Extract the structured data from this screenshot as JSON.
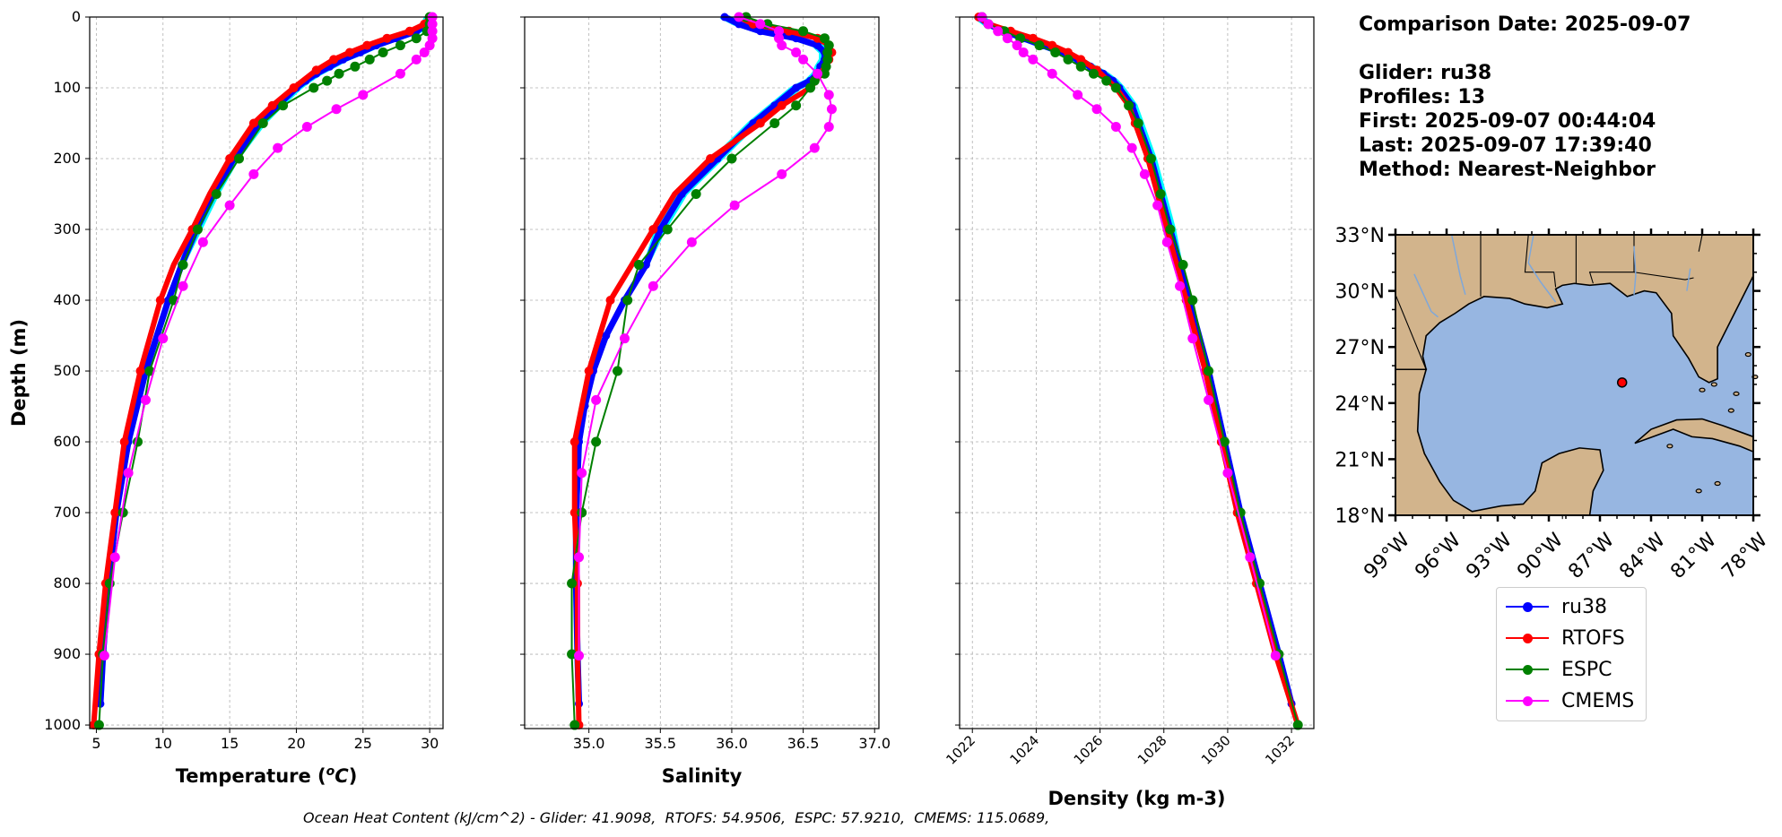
{
  "info": {
    "comparison_date": "Comparison Date: 2025-09-07",
    "glider": "Glider: ru38",
    "profiles": "Profiles: 13",
    "first": "First: 2025-09-07 00:44:04",
    "last": "Last: 2025-09-07 17:39:40",
    "method": "Method: Nearest-Neighbor"
  },
  "footer": "Ocean Heat Content (kJ/cm^2) - Glider: 41.9098,  RTOFS: 54.9506,  ESPC: 57.9210,  CMEMS: 115.0689,",
  "colors": {
    "glider": "#0000ff",
    "glider_raw": "#00ffff",
    "rtofs": "#ff0000",
    "espc": "#008000",
    "cmems": "#ff00ff",
    "land": "#d2b48c",
    "ocean": "#97b6e1"
  },
  "legend": [
    {
      "label": "ru38",
      "color": "#0000ff"
    },
    {
      "label": "RTOFS",
      "color": "#ff0000"
    },
    {
      "label": "ESPC",
      "color": "#008000"
    },
    {
      "label": "CMEMS",
      "color": "#ff00ff"
    }
  ],
  "chart_data": [
    {
      "type": "line",
      "xlabel": "Temperature (°C)",
      "ylabel": "Depth (m)",
      "xlim": [
        4.5,
        31
      ],
      "ylim": [
        1005,
        0
      ],
      "xticks": [
        5,
        10,
        15,
        20,
        25,
        30
      ],
      "yticks": [
        0,
        100,
        200,
        300,
        400,
        500,
        600,
        700,
        800,
        900,
        1000
      ],
      "grid": true,
      "series": [
        {
          "name": "ru38",
          "depth": [
            0,
            10,
            20,
            30,
            40,
            50,
            60,
            70,
            80,
            90,
            100,
            125,
            150,
            200,
            250,
            300,
            350,
            400,
            500,
            600,
            700,
            800,
            900,
            970
          ],
          "values": [
            30.0,
            29.8,
            29.0,
            27.5,
            26.0,
            24.8,
            23.5,
            22.5,
            21.5,
            20.7,
            20.0,
            18.6,
            17.3,
            15.3,
            13.8,
            12.5,
            11.4,
            10.4,
            8.7,
            7.4,
            6.5,
            5.9,
            5.5,
            5.3
          ]
        },
        {
          "name": "RTOFS",
          "depth": [
            0,
            10,
            20,
            30,
            40,
            50,
            60,
            75,
            100,
            125,
            150,
            200,
            250,
            300,
            350,
            400,
            500,
            600,
            700,
            800,
            900,
            1000
          ],
          "values": [
            30.0,
            29.6,
            28.5,
            26.8,
            25.3,
            24.0,
            22.8,
            21.5,
            19.8,
            18.2,
            16.8,
            15.0,
            13.5,
            12.2,
            10.8,
            9.8,
            8.3,
            7.1,
            6.4,
            5.7,
            5.2,
            4.8
          ]
        },
        {
          "name": "ESPC",
          "depth": [
            0,
            10,
            20,
            30,
            40,
            50,
            60,
            70,
            80,
            90,
            100,
            125,
            150,
            200,
            250,
            300,
            350,
            400,
            500,
            600,
            700,
            800,
            900,
            1000
          ],
          "values": [
            30.0,
            30.0,
            29.8,
            29.0,
            27.8,
            26.5,
            25.5,
            24.4,
            23.2,
            22.3,
            21.3,
            19.0,
            17.5,
            15.7,
            14.0,
            12.6,
            11.5,
            10.8,
            9.0,
            8.1,
            7.0,
            6.0,
            5.5,
            5.2
          ]
        },
        {
          "name": "CMEMS",
          "depth": [
            0,
            10,
            20,
            30,
            40,
            50,
            60,
            80,
            110,
            130,
            155,
            185,
            222,
            266,
            318,
            380,
            454,
            541,
            644,
            763,
            902
          ],
          "values": [
            30.2,
            30.2,
            30.2,
            30.2,
            30.0,
            29.6,
            29.0,
            27.8,
            25.0,
            23.0,
            20.8,
            18.6,
            16.8,
            15.0,
            13.0,
            11.5,
            10.0,
            8.7,
            7.4,
            6.4,
            5.6
          ]
        }
      ]
    },
    {
      "type": "line",
      "xlabel": "Salinity",
      "xlim": [
        34.55,
        37.03
      ],
      "ylim": [
        1005,
        0
      ],
      "xticks": [
        35.0,
        35.5,
        36.0,
        36.5,
        37.0
      ],
      "grid": true,
      "series": [
        {
          "name": "ru38",
          "depth": [
            0,
            10,
            20,
            30,
            40,
            50,
            60,
            70,
            80,
            90,
            100,
            125,
            150,
            200,
            250,
            300,
            350,
            400,
            450,
            500,
            550,
            600,
            700,
            800,
            900,
            970
          ],
          "values": [
            35.95,
            36.05,
            36.2,
            36.45,
            36.6,
            36.65,
            36.65,
            36.62,
            36.6,
            36.55,
            36.45,
            36.3,
            36.15,
            35.9,
            35.65,
            35.5,
            35.4,
            35.25,
            35.12,
            35.03,
            34.97,
            34.93,
            34.91,
            34.91,
            34.92,
            34.93
          ]
        },
        {
          "name": "RTOFS",
          "depth": [
            0,
            10,
            20,
            30,
            40,
            50,
            60,
            75,
            100,
            125,
            150,
            200,
            250,
            300,
            350,
            400,
            500,
            600,
            700,
            800,
            900,
            1000
          ],
          "values": [
            36.05,
            36.15,
            36.4,
            36.6,
            36.68,
            36.7,
            36.68,
            36.65,
            36.55,
            36.35,
            36.2,
            35.85,
            35.6,
            35.45,
            35.3,
            35.15,
            35.0,
            34.9,
            34.9,
            34.92,
            34.92,
            34.93
          ]
        },
        {
          "name": "ESPC",
          "depth": [
            0,
            10,
            20,
            30,
            40,
            50,
            60,
            70,
            80,
            90,
            100,
            125,
            150,
            200,
            250,
            300,
            350,
            400,
            500,
            600,
            700,
            800,
            900,
            1000
          ],
          "values": [
            36.1,
            36.25,
            36.5,
            36.65,
            36.68,
            36.67,
            36.67,
            36.66,
            36.65,
            36.58,
            36.55,
            36.45,
            36.3,
            36.0,
            35.75,
            35.55,
            35.35,
            35.27,
            35.2,
            35.05,
            34.95,
            34.88,
            34.88,
            34.9
          ]
        },
        {
          "name": "CMEMS",
          "depth": [
            0,
            10,
            20,
            30,
            40,
            50,
            60,
            80,
            110,
            130,
            155,
            185,
            222,
            266,
            318,
            380,
            454,
            541,
            644,
            763,
            902
          ],
          "values": [
            36.05,
            36.2,
            36.33,
            36.33,
            36.35,
            36.45,
            36.5,
            36.6,
            36.68,
            36.7,
            36.68,
            36.58,
            36.35,
            36.02,
            35.72,
            35.45,
            35.25,
            35.05,
            34.95,
            34.93,
            34.93
          ]
        }
      ]
    },
    {
      "type": "line",
      "xlabel": "Density (kg m-3)",
      "xlim": [
        1021.6,
        1032.7
      ],
      "ylim": [
        1005,
        0
      ],
      "xticks": [
        1022,
        1024,
        1026,
        1028,
        1030,
        1032
      ],
      "grid": true,
      "series": [
        {
          "name": "ru38",
          "depth": [
            0,
            10,
            20,
            30,
            40,
            50,
            60,
            70,
            80,
            90,
            100,
            125,
            150,
            200,
            250,
            300,
            350,
            400,
            500,
            600,
            700,
            800,
            900,
            970
          ],
          "values": [
            1022.2,
            1022.5,
            1023.0,
            1023.6,
            1024.2,
            1024.8,
            1025.3,
            1025.7,
            1026.1,
            1026.4,
            1026.6,
            1027.0,
            1027.2,
            1027.6,
            1027.9,
            1028.2,
            1028.5,
            1028.8,
            1029.4,
            1029.9,
            1030.4,
            1031.0,
            1031.6,
            1032.0
          ]
        },
        {
          "name": "RTOFS",
          "depth": [
            0,
            10,
            20,
            30,
            40,
            50,
            60,
            75,
            100,
            125,
            150,
            200,
            250,
            300,
            350,
            400,
            500,
            600,
            700,
            800,
            900,
            1000
          ],
          "values": [
            1022.2,
            1022.5,
            1023.2,
            1023.9,
            1024.5,
            1025.0,
            1025.4,
            1025.9,
            1026.5,
            1026.9,
            1027.1,
            1027.5,
            1027.8,
            1028.1,
            1028.4,
            1028.7,
            1029.3,
            1029.8,
            1030.3,
            1030.9,
            1031.5,
            1032.2
          ]
        },
        {
          "name": "ESPC",
          "depth": [
            0,
            10,
            20,
            30,
            40,
            50,
            60,
            70,
            80,
            90,
            100,
            125,
            150,
            200,
            250,
            300,
            350,
            400,
            500,
            600,
            700,
            800,
            900,
            1000
          ],
          "values": [
            1022.3,
            1022.5,
            1023.0,
            1023.5,
            1024.1,
            1024.6,
            1025.0,
            1025.4,
            1025.8,
            1026.2,
            1026.5,
            1026.9,
            1027.2,
            1027.6,
            1027.9,
            1028.2,
            1028.6,
            1028.9,
            1029.4,
            1029.9,
            1030.4,
            1031.0,
            1031.6,
            1032.2
          ]
        },
        {
          "name": "CMEMS",
          "depth": [
            0,
            10,
            20,
            30,
            40,
            50,
            60,
            80,
            110,
            130,
            155,
            185,
            222,
            266,
            318,
            380,
            454,
            541,
            644,
            763,
            902
          ],
          "values": [
            1022.3,
            1022.5,
            1022.8,
            1023.1,
            1023.4,
            1023.6,
            1023.9,
            1024.5,
            1025.3,
            1025.9,
            1026.5,
            1027.0,
            1027.4,
            1027.8,
            1028.1,
            1028.5,
            1028.9,
            1029.4,
            1030.0,
            1030.7,
            1031.5
          ]
        }
      ]
    }
  ],
  "map": {
    "lon_range": [
      -99,
      -78
    ],
    "lat_range": [
      18,
      33
    ],
    "lat_labels": [
      "33°N",
      "30°N",
      "27°N",
      "24°N",
      "21°N",
      "18°N"
    ],
    "lon_labels": [
      "99°W",
      "96°W",
      "93°W",
      "90°W",
      "87°W",
      "84°W",
      "81°W",
      "78°W"
    ],
    "marker": {
      "lon": -85.7,
      "lat": 25.1
    }
  }
}
